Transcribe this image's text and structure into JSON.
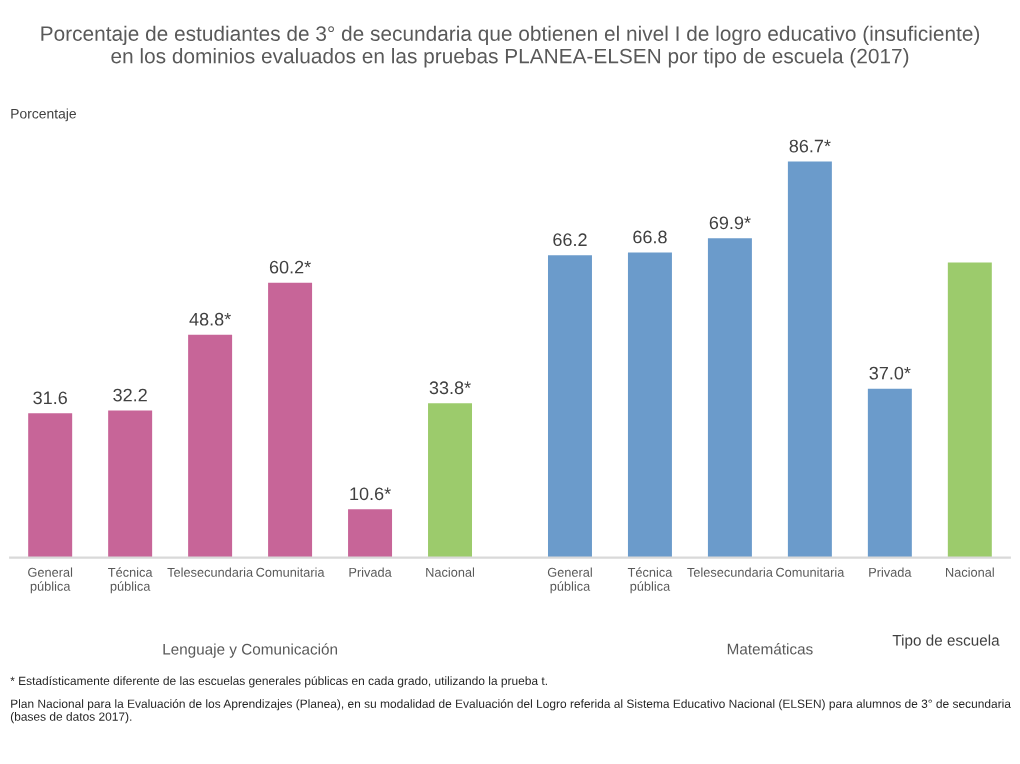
{
  "chart_data": {
    "type": "bar",
    "title": "Porcentaje de estudiantes de 3° de secundaria que obtienen el nivel I de logro educativo (insuficiente)\nen los dominios evaluados en las pruebas PLANEA-ELSEN por tipo de escuela (2017)",
    "ylabel": "Porcentaje",
    "xlabel": "Tipo de escuela",
    "categories": [
      "General\npública",
      "Técnica\npública",
      "Telesecundaria",
      "Comunitaria",
      "Privada",
      "Nacional",
      "General\npública",
      "Técnica\npública",
      "Telesecundaria",
      "Comunitaria",
      "Privada",
      "Nacional"
    ],
    "values": [
      31.6,
      32.2,
      48.8,
      60.2,
      10.6,
      33.8,
      66.2,
      66.8,
      69.9,
      86.7,
      37.0,
      64.6
    ],
    "value_labels": [
      "31.6",
      "32.2",
      "48.8*",
      "60.2*",
      "10.6*",
      "33.8*",
      "66.2",
      "66.8",
      "69.9*",
      "86.7*",
      "37.0*",
      null
    ],
    "colors": [
      "#c76598",
      "#c76598",
      "#c76598",
      "#c76598",
      "#c76598",
      "#9ccb6c",
      "#6b9bcb",
      "#6b9bcb",
      "#6b9bcb",
      "#6b9bcb",
      "#6b9bcb",
      "#9ccb6c"
    ],
    "annotations": [
      "Lenguaje y Comunicación",
      "Matemáticas",
      "* Estadísticamente diferente de las escuelas generales públicas en cada grado, utilizando la prueba t.",
      "Plan Nacional para la Evaluación de los Aprendizajes (Planea), en su modalidad de Evaluación del Logro referida al Sistema Educativo Nacional (ELSEN) para alumnos de 3° de secundaria (bases de datos 2017)."
    ],
    "grid": false,
    "legend": false
  }
}
